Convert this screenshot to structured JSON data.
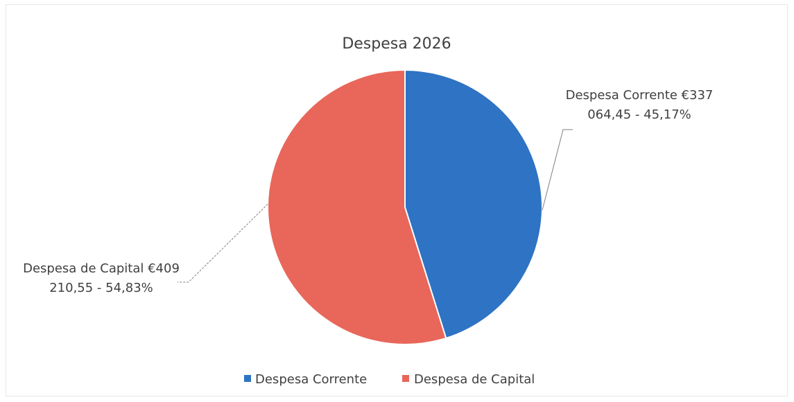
{
  "chart_data": {
    "type": "pie",
    "title": "Despesa 2026",
    "categories": [
      "Despesa Corrente",
      "Despesa de Capital"
    ],
    "values": [
      337064.45,
      409210.55
    ],
    "percentages": [
      45.17,
      54.83
    ],
    "colors": [
      "#2e73c4",
      "#e8675a"
    ],
    "data_labels": [
      {
        "line1": "Despesa Corrente €337",
        "line2": "064,45  - 45,17%"
      },
      {
        "line1": "Despesa de Capital €409",
        "line2": "210,55  - 54,83%"
      }
    ],
    "legend": {
      "position": "bottom",
      "entries": [
        "Despesa Corrente",
        "Despesa de Capital"
      ]
    }
  }
}
